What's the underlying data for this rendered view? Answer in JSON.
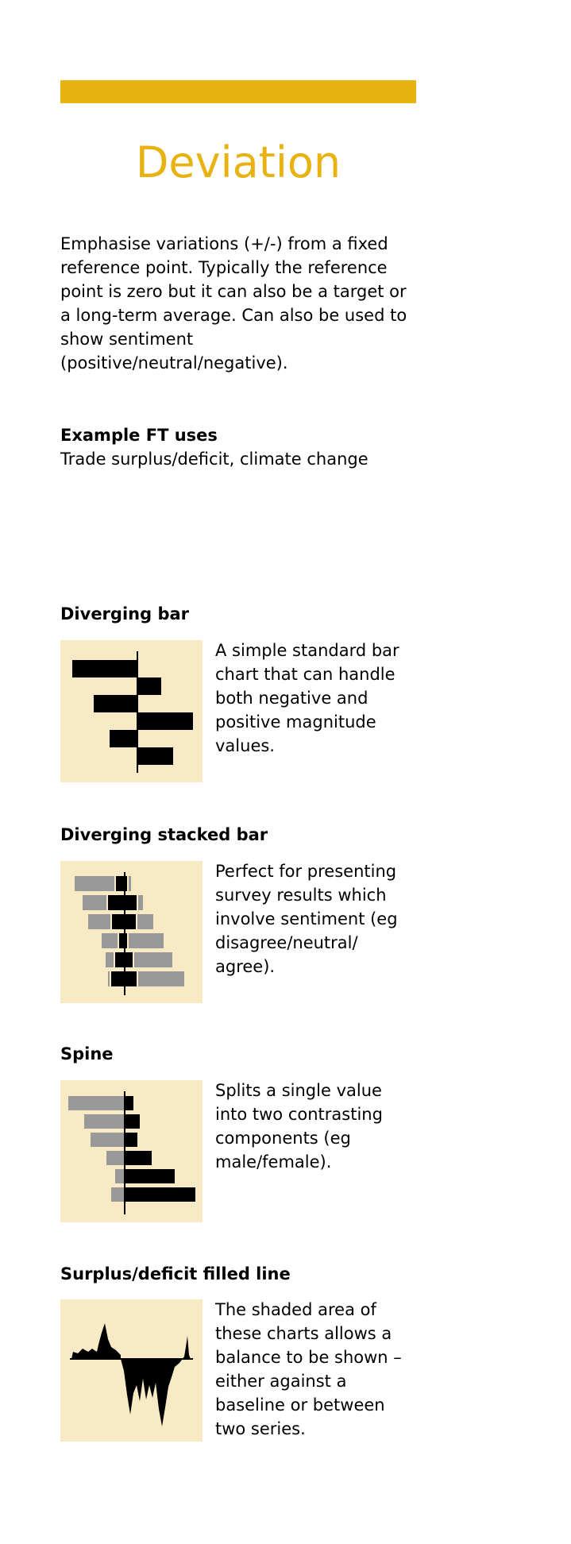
{
  "header": {
    "title": "Deviation",
    "accent_color": "#e8b210"
  },
  "intro": "Emphasise variations (+/-) from a fixed reference point. Typically the reference point is zero but it can also be a target or a long-term average. Can also be used to show sentiment (positive/neutral/negative).",
  "example_uses": {
    "heading": "Example FT uses",
    "text": "Trade surplus/deficit, climate change"
  },
  "chart_types": [
    {
      "name": "Diverging bar",
      "description": "A simple standard bar chart that can handle both negative and positive magnitude values.",
      "icon": "diverging-bar-icon"
    },
    {
      "name": "Diverging stacked bar",
      "description": "Perfect for presenting survey results which involve sentiment (eg disagree/neutral/ agree).",
      "icon": "diverging-stacked-bar-icon"
    },
    {
      "name": "Spine",
      "description": "Splits a single value into two contrasting components (eg male/female).",
      "icon": "spine-icon"
    },
    {
      "name": "Surplus/deficit filled line",
      "description": "The shaded area of these charts allows a balance to be shown – either against a baseline or between two series.",
      "icon": "surplus-deficit-filled-line-icon"
    }
  ],
  "colors": {
    "thumbnail_bg": "#f9eac6",
    "mark_dark": "#000000",
    "mark_grey": "#999999"
  }
}
